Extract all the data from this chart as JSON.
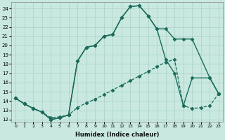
{
  "xlabel": "Humidex (Indice chaleur)",
  "background_color": "#c8e8e0",
  "grid_color": "#a8d0c8",
  "line_color": "#1a6b5a",
  "xlim": [
    -0.5,
    23.5
  ],
  "ylim": [
    11.8,
    24.7
  ],
  "xticks": [
    0,
    1,
    2,
    3,
    4,
    5,
    6,
    7,
    8,
    9,
    10,
    11,
    12,
    13,
    14,
    15,
    16,
    17,
    18,
    19,
    20,
    21,
    22,
    23
  ],
  "yticks": [
    12,
    13,
    14,
    15,
    16,
    17,
    18,
    19,
    20,
    21,
    22,
    23,
    24
  ],
  "series": [
    {
      "x": [
        0,
        1,
        2,
        3,
        4,
        5,
        6,
        7,
        8,
        9,
        10,
        11,
        12,
        13,
        14,
        15,
        16,
        17,
        18,
        19,
        20,
        22,
        23
      ],
      "y": [
        14.3,
        13.7,
        13.2,
        12.8,
        12.0,
        12.2,
        12.5,
        18.3,
        19.8,
        20.0,
        21.0,
        21.2,
        23.0,
        24.2,
        24.3,
        23.2,
        21.8,
        21.8,
        20.7,
        20.7,
        20.7,
        16.5,
        14.8
      ],
      "style": "-",
      "marker": "D",
      "markersize": 2.5,
      "linewidth": 1.0
    },
    {
      "x": [
        0,
        1,
        2,
        3,
        4,
        5,
        6,
        7,
        8,
        9,
        10,
        11,
        12,
        13,
        14,
        15,
        16,
        17,
        18,
        19,
        20,
        22,
        23
      ],
      "y": [
        14.3,
        13.7,
        13.2,
        12.8,
        12.0,
        12.2,
        12.5,
        18.3,
        19.8,
        20.0,
        21.0,
        21.2,
        23.0,
        24.2,
        24.3,
        23.2,
        21.8,
        18.5,
        17.0,
        13.5,
        16.5,
        16.5,
        14.8
      ],
      "style": "-",
      "marker": "D",
      "markersize": 2.5,
      "linewidth": 1.0
    },
    {
      "x": [
        0,
        1,
        2,
        3,
        4,
        5,
        6,
        7,
        8,
        9,
        10,
        11,
        12,
        13,
        14,
        15,
        16,
        17,
        18,
        19,
        20,
        21,
        22,
        23
      ],
      "y": [
        14.3,
        13.7,
        13.2,
        12.8,
        12.2,
        12.3,
        12.5,
        13.3,
        13.8,
        14.2,
        14.7,
        15.2,
        15.7,
        16.2,
        16.7,
        17.2,
        17.7,
        18.2,
        18.5,
        13.5,
        13.2,
        13.3,
        13.5,
        14.8
      ],
      "style": "--",
      "marker": "D",
      "markersize": 2.5,
      "linewidth": 0.9
    }
  ]
}
